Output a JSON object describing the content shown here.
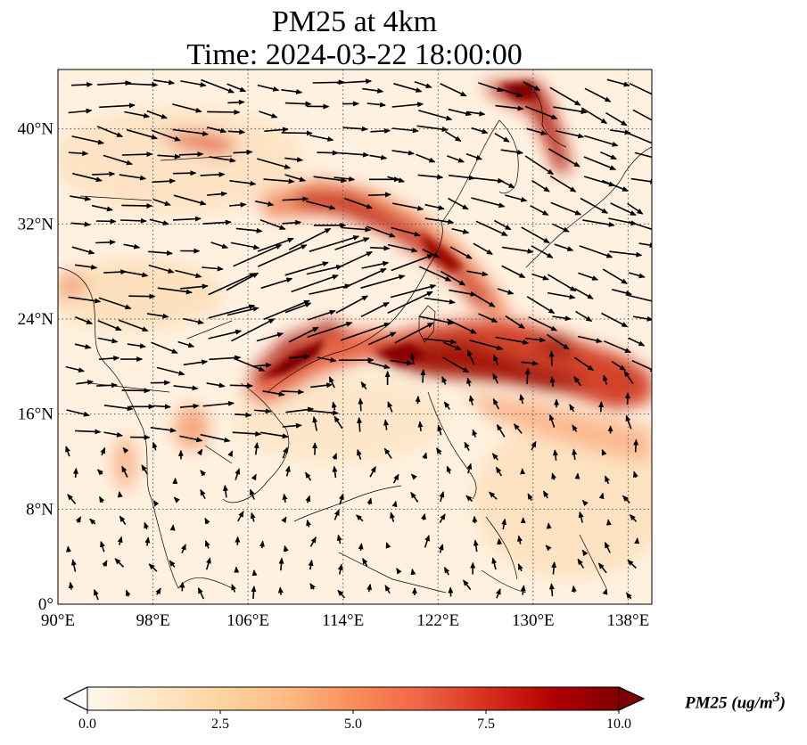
{
  "title": {
    "line1": "PM25 at 4km",
    "line2": "Time: 2024-03-22 18:00:00"
  },
  "map": {
    "lon_range": [
      90,
      140
    ],
    "lat_range": [
      0,
      45
    ],
    "lon_ticks": [
      {
        "value": 90,
        "label": "90°E"
      },
      {
        "value": 98,
        "label": "98°E"
      },
      {
        "value": 106,
        "label": "106°E"
      },
      {
        "value": 114,
        "label": "114°E"
      },
      {
        "value": 122,
        "label": "122°E"
      },
      {
        "value": 130,
        "label": "130°E"
      },
      {
        "value": 138,
        "label": "138°E"
      }
    ],
    "lat_ticks": [
      {
        "value": 0,
        "label": "0°"
      },
      {
        "value": 8,
        "label": "8°N"
      },
      {
        "value": 16,
        "label": "16°N"
      },
      {
        "value": 24,
        "label": "24°N"
      },
      {
        "value": 32,
        "label": "32°N"
      },
      {
        "value": 40,
        "label": "40°N"
      }
    ],
    "gridlines": "dotted"
  },
  "colorbar": {
    "title": "PM25 (ug/m",
    "title_sup": "3",
    "title_end": ")",
    "min": 0,
    "max": 10,
    "extend": "both",
    "ticks": [
      {
        "value": 0,
        "label": "0.0"
      },
      {
        "value": 2.5,
        "label": "2.5"
      },
      {
        "value": 5,
        "label": "5.0"
      },
      {
        "value": 7.5,
        "label": "7.5"
      },
      {
        "value": 10,
        "label": "10.0"
      }
    ],
    "colormap": [
      "#fff7ec",
      "#fee8c8",
      "#fdd49e",
      "#fdbb84",
      "#fc8d59",
      "#ef6548",
      "#d7301f",
      "#b30000",
      "#7f0000"
    ]
  }
}
